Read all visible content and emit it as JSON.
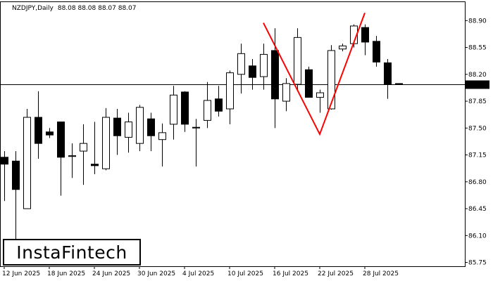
{
  "chart_data": {
    "type": "candlestick",
    "symbol_timeframe": "NZDJPY,Daily",
    "ohlc_header": "88.08 88.08 88.07 88.07",
    "ylim": [
      85.7,
      89.15
    ],
    "y_ticks": [
      "88.90",
      "88.55",
      "88.20",
      "87.85",
      "87.50",
      "87.15",
      "86.80",
      "86.45",
      "86.10",
      "85.75"
    ],
    "x_ticks": [
      {
        "label": "12 Jun 2025",
        "index": 0
      },
      {
        "label": "18 Jun 2025",
        "index": 4
      },
      {
        "label": "24 Jun 2025",
        "index": 8
      },
      {
        "label": "30 Jun 2025",
        "index": 12
      },
      {
        "label": "4 Jul 2025",
        "index": 16
      },
      {
        "label": "10 Jul 2025",
        "index": 20
      },
      {
        "label": "16 Jul 2025",
        "index": 24
      },
      {
        "label": "22 Jul 2025",
        "index": 28
      },
      {
        "label": "28 Jul 2025",
        "index": 32
      }
    ],
    "current_price": 88.07,
    "current_price_label": "88.07",
    "candles": [
      {
        "o": 87.12,
        "h": 87.2,
        "l": 86.55,
        "c": 87.03
      },
      {
        "o": 87.07,
        "h": 87.2,
        "l": 86.0,
        "c": 86.7
      },
      {
        "o": 86.45,
        "h": 87.75,
        "l": 86.45,
        "c": 87.64
      },
      {
        "o": 87.64,
        "h": 87.98,
        "l": 87.1,
        "c": 87.3
      },
      {
        "o": 87.45,
        "h": 87.5,
        "l": 87.37,
        "c": 87.41
      },
      {
        "o": 87.58,
        "h": 87.58,
        "l": 86.62,
        "c": 87.12
      },
      {
        "o": 87.13,
        "h": 87.3,
        "l": 86.85,
        "c": 87.14
      },
      {
        "o": 87.2,
        "h": 87.55,
        "l": 86.76,
        "c": 87.3
      },
      {
        "o": 87.03,
        "h": 87.58,
        "l": 86.9,
        "c": 87.01
      },
      {
        "o": 86.97,
        "h": 87.76,
        "l": 86.95,
        "c": 87.64
      },
      {
        "o": 87.63,
        "h": 87.75,
        "l": 87.15,
        "c": 87.4
      },
      {
        "o": 87.38,
        "h": 87.7,
        "l": 87.18,
        "c": 87.58
      },
      {
        "o": 87.3,
        "h": 87.8,
        "l": 87.2,
        "c": 87.77
      },
      {
        "o": 87.62,
        "h": 87.7,
        "l": 87.2,
        "c": 87.4
      },
      {
        "o": 87.35,
        "h": 87.56,
        "l": 87.0,
        "c": 87.44
      },
      {
        "o": 87.55,
        "h": 88.05,
        "l": 87.35,
        "c": 87.93
      },
      {
        "o": 87.97,
        "h": 87.98,
        "l": 87.45,
        "c": 87.55
      },
      {
        "o": 87.51,
        "h": 87.62,
        "l": 87.0,
        "c": 87.51
      },
      {
        "o": 87.6,
        "h": 88.1,
        "l": 87.5,
        "c": 87.86
      },
      {
        "o": 87.88,
        "h": 88.05,
        "l": 87.65,
        "c": 87.72
      },
      {
        "o": 87.75,
        "h": 88.25,
        "l": 87.55,
        "c": 88.22
      },
      {
        "o": 88.2,
        "h": 88.6,
        "l": 87.95,
        "c": 88.47
      },
      {
        "o": 88.31,
        "h": 88.4,
        "l": 88.0,
        "c": 88.16
      },
      {
        "o": 88.17,
        "h": 88.6,
        "l": 88.0,
        "c": 88.46
      },
      {
        "o": 88.51,
        "h": 88.8,
        "l": 87.5,
        "c": 87.88
      },
      {
        "o": 87.85,
        "h": 88.15,
        "l": 87.72,
        "c": 88.08
      },
      {
        "o": 88.07,
        "h": 88.8,
        "l": 88.0,
        "c": 88.68
      },
      {
        "o": 88.26,
        "h": 88.3,
        "l": 87.9,
        "c": 87.9
      },
      {
        "o": 87.9,
        "h": 88.0,
        "l": 87.7,
        "c": 87.96
      },
      {
        "o": 87.75,
        "h": 88.58,
        "l": 87.74,
        "c": 88.51
      },
      {
        "o": 88.53,
        "h": 88.6,
        "l": 88.5,
        "c": 88.57
      },
      {
        "o": 88.6,
        "h": 88.85,
        "l": 88.55,
        "c": 88.83
      },
      {
        "o": 88.81,
        "h": 88.85,
        "l": 88.45,
        "c": 88.62
      },
      {
        "o": 88.63,
        "h": 88.7,
        "l": 88.3,
        "c": 88.36
      },
      {
        "o": 88.35,
        "h": 88.4,
        "l": 87.88,
        "c": 88.07
      },
      {
        "o": 88.08,
        "h": 88.08,
        "l": 88.07,
        "c": 88.07
      }
    ],
    "pattern_line": {
      "color": "#ff0000",
      "points": [
        {
          "index": 23,
          "price": 88.87
        },
        {
          "index": 28,
          "price": 87.42
        },
        {
          "index": 32,
          "price": 89.0
        }
      ]
    },
    "colors": {
      "bull_body": "#ffffff",
      "bear_body": "#000000",
      "outline": "#000000",
      "price_label_bg": "#000000",
      "price_label_fg": "#ffffff"
    }
  },
  "branding": {
    "logo_text": "InstaFintech"
  }
}
